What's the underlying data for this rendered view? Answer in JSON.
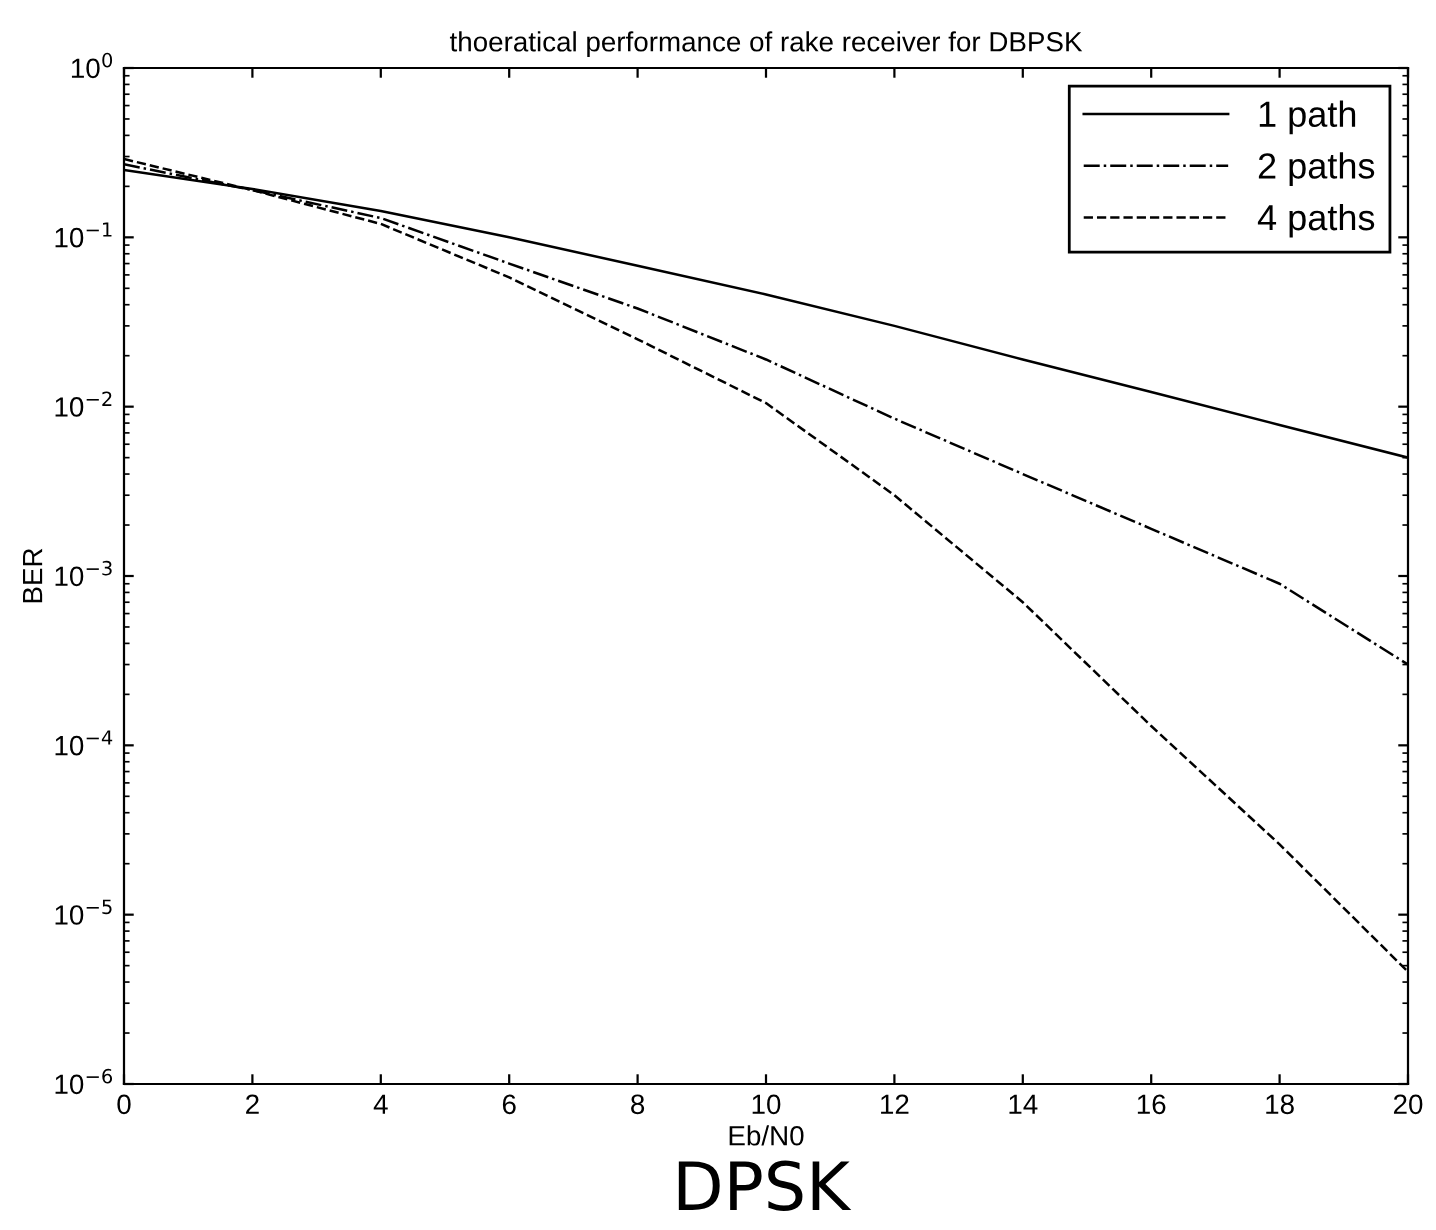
{
  "chart_data": {
    "type": "line",
    "title": "thoeratical performance of rake receiver for DBPSK",
    "xlabel": "Eb/N0",
    "ylabel": "BER",
    "annotations": [
      "DPSK"
    ],
    "x": [
      0,
      2,
      4,
      6,
      8,
      10,
      12,
      14,
      16,
      18,
      20
    ],
    "series": [
      {
        "name": "1 path",
        "color": "#000000",
        "line_style": "solid",
        "values": [
          0.25,
          0.193,
          0.143,
          0.1,
          0.068,
          0.046,
          0.03,
          0.019,
          0.0122,
          0.0078,
          0.005
        ]
      },
      {
        "name": "2 paths",
        "color": "#000000",
        "line_style": "dashdot",
        "values": [
          0.27,
          0.19,
          0.13,
          0.07,
          0.038,
          0.019,
          0.0085,
          0.004,
          0.0019,
          0.0009,
          0.0003
        ]
      },
      {
        "name": "4 paths",
        "color": "#000000",
        "line_style": "dashed",
        "values": [
          0.29,
          0.19,
          0.12,
          0.058,
          0.025,
          0.0105,
          0.003,
          0.0007,
          0.00013,
          2.6e-05,
          4.6e-06
        ]
      }
    ],
    "log": "y",
    "xlim": [
      0,
      20
    ],
    "ylim": [
      1e-06,
      1
    ],
    "xticks": [
      0,
      2,
      4,
      6,
      8,
      10,
      12,
      14,
      16,
      18,
      20
    ],
    "yticks": [
      {
        "value": 1e-06,
        "label": "10$^{−6}$"
      },
      {
        "value": 1e-05,
        "label": "10$^{−5}$"
      },
      {
        "value": 0.0001,
        "label": "10$^{−4}$"
      },
      {
        "value": 0.001,
        "label": "10$^{−3}$"
      },
      {
        "value": 0.01,
        "label": "10$^{−2}$"
      },
      {
        "value": 0.1,
        "label": "10$^{−1}$"
      },
      {
        "value": 1,
        "label": "10$^{0}$"
      }
    ],
    "grid": false,
    "legend": "top right",
    "marker": "none"
  }
}
